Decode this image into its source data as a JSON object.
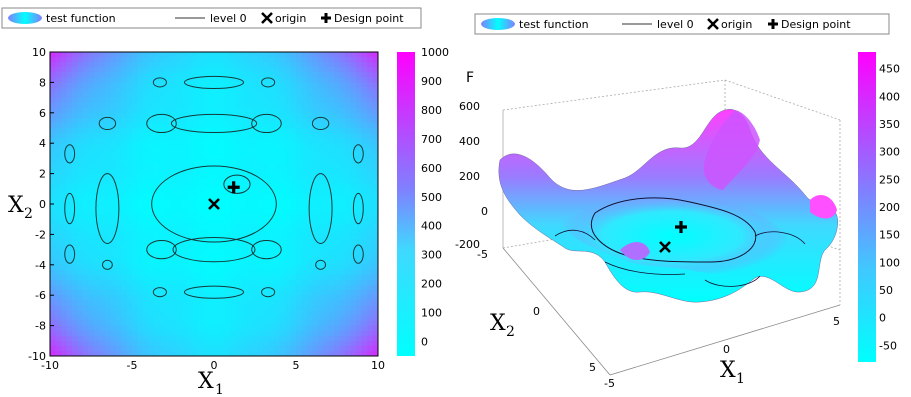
{
  "chart_data": [
    {
      "type": "heatmap",
      "title": "",
      "legend": {
        "position": "top",
        "entries": [
          {
            "label": "test function",
            "kind": "surface"
          },
          {
            "label": "level 0",
            "kind": "line"
          },
          {
            "label": "origin",
            "kind": "marker-x"
          },
          {
            "label": "Design point",
            "kind": "marker-plus"
          }
        ]
      },
      "xlabel": "X",
      "xlabel_sub": "1",
      "ylabel": "X",
      "ylabel_sub": "2",
      "xlim": [
        -10,
        10
      ],
      "ylim": [
        -10,
        10
      ],
      "xticks": [
        -10,
        -5,
        0,
        5,
        10
      ],
      "yticks": [
        -10,
        -8,
        -6,
        -4,
        -2,
        0,
        2,
        4,
        6,
        8,
        10
      ],
      "colorbar": {
        "min": -50,
        "max": 1000,
        "ticks": [
          0,
          100,
          200,
          300,
          400,
          500,
          600,
          700,
          800,
          900,
          1000
        ]
      },
      "colors": {
        "low": "#00ffff",
        "high": "#ff00ff"
      },
      "points": {
        "origin": [
          0,
          0
        ],
        "design_point": [
          1.2,
          1.1
        ]
      },
      "grid": false
    },
    {
      "type": "surface",
      "title": "",
      "legend": {
        "position": "top",
        "entries": [
          {
            "label": "test function",
            "kind": "surface"
          },
          {
            "label": "level 0",
            "kind": "line"
          },
          {
            "label": "origin",
            "kind": "marker-x"
          },
          {
            "label": "Design point",
            "kind": "marker-plus"
          }
        ]
      },
      "zlabel": "F",
      "xlabel": "X",
      "xlabel_sub": "1",
      "ylabel": "X",
      "ylabel_sub": "2",
      "zticks": [
        -200,
        0,
        200,
        400,
        600
      ],
      "xticks": [
        -5,
        0,
        5
      ],
      "yticks": [
        -5,
        0,
        5
      ],
      "colorbar": {
        "min": -80,
        "max": 480,
        "ticks": [
          -50,
          0,
          50,
          100,
          150,
          200,
          250,
          300,
          350,
          400,
          450
        ]
      },
      "colors": {
        "low": "#00ffff",
        "high": "#ff00ff"
      },
      "grid": true
    }
  ]
}
